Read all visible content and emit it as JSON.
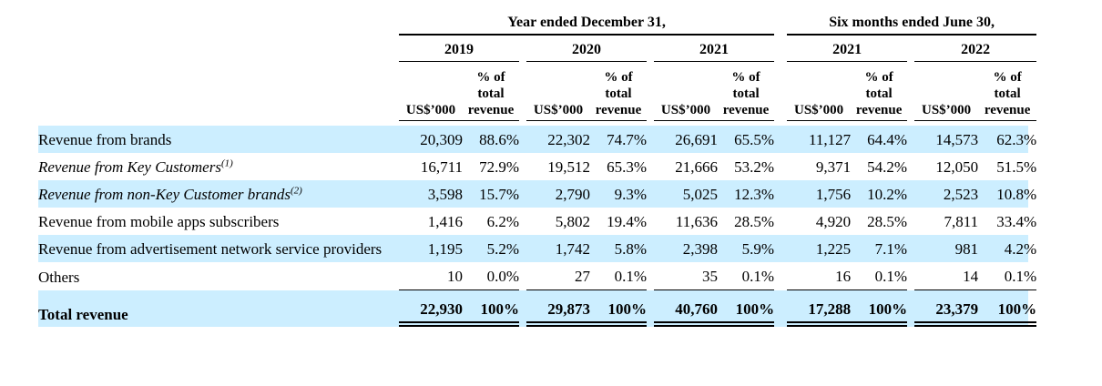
{
  "table": {
    "highlight_color": "#cceeff",
    "header": {
      "group1_title": "Year ended December 31,",
      "group2_title": "Six months ended June 30,",
      "years": [
        "2019",
        "2020",
        "2021",
        "2021",
        "2022"
      ],
      "amount_label": "US$’000",
      "percent_label_line1": "% of",
      "percent_label_line2": "total",
      "percent_label_line3": "revenue"
    },
    "rows": [
      {
        "label": "Revenue from brands",
        "sup": "",
        "values": [
          "20,309",
          "88.6%",
          "22,302",
          "74.7%",
          "26,691",
          "65.5%",
          "11,127",
          "64.4%",
          "14,573",
          "62.3%"
        ]
      },
      {
        "label": "Revenue from Key Customers",
        "sup": "(1)",
        "values": [
          "16,711",
          "72.9%",
          "19,512",
          "65.3%",
          "21,666",
          "53.2%",
          "9,371",
          "54.2%",
          "12,050",
          "51.5%"
        ]
      },
      {
        "label": "Revenue from non-Key Customer brands",
        "sup": "(2)",
        "values": [
          "3,598",
          "15.7%",
          "2,790",
          "9.3%",
          "5,025",
          "12.3%",
          "1,756",
          "10.2%",
          "2,523",
          "10.8%"
        ]
      },
      {
        "label": "Revenue from mobile apps subscribers",
        "sup": "",
        "values": [
          "1,416",
          "6.2%",
          "5,802",
          "19.4%",
          "11,636",
          "28.5%",
          "4,920",
          "28.5%",
          "7,811",
          "33.4%"
        ]
      },
      {
        "label": "Revenue from advertisement network service providers",
        "sup": "",
        "values": [
          "1,195",
          "5.2%",
          "1,742",
          "5.8%",
          "2,398",
          "5.9%",
          "1,225",
          "7.1%",
          "981",
          "4.2%"
        ]
      },
      {
        "label": "Others",
        "sup": "",
        "values": [
          "10",
          "0.0%",
          "27",
          "0.1%",
          "35",
          "0.1%",
          "16",
          "0.1%",
          "14",
          "0.1%"
        ]
      }
    ],
    "total_row": {
      "label": "Total revenue",
      "values": [
        "22,930",
        "100%",
        "29,873",
        "100%",
        "40,760",
        "100%",
        "17,288",
        "100%",
        "23,379",
        "100%"
      ]
    }
  }
}
